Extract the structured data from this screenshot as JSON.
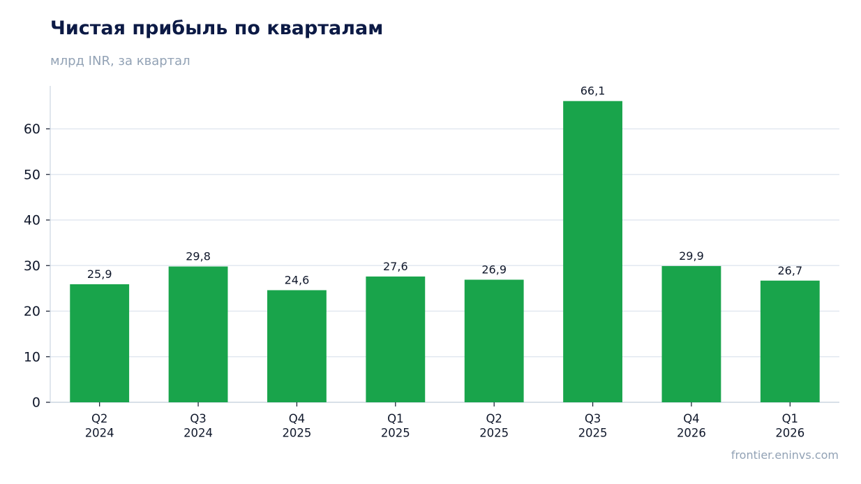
{
  "chart_data": {
    "type": "bar",
    "title": "Чистая прибыль по кварталам",
    "subtitle": "млрд INR, за квартал",
    "source": "frontier.eninvs.com",
    "xlabel": "",
    "ylabel": "",
    "categories": [
      [
        "Q2",
        "2024"
      ],
      [
        "Q3",
        "2024"
      ],
      [
        "Q4",
        "2025"
      ],
      [
        "Q1",
        "2025"
      ],
      [
        "Q2",
        "2025"
      ],
      [
        "Q3",
        "2025"
      ],
      [
        "Q4",
        "2026"
      ],
      [
        "Q1",
        "2026"
      ]
    ],
    "values": [
      25.9,
      29.8,
      24.6,
      27.6,
      26.9,
      66.1,
      29.9,
      26.7
    ],
    "data_labels": [
      "25,9",
      "29,8",
      "24,6",
      "27,6",
      "26,9",
      "66,1",
      "29,9",
      "26,7"
    ],
    "yticks": [
      0,
      10,
      20,
      30,
      40,
      50,
      60
    ],
    "ylim": [
      0,
      69
    ],
    "grid": true,
    "legend": "none",
    "colors": {
      "bar": "#19a44b",
      "grid": "#e2e8f0",
      "axis": "#cbd5e1",
      "text": "#0f172a",
      "title": "#0c1a45",
      "muted": "#92a2b5"
    }
  }
}
